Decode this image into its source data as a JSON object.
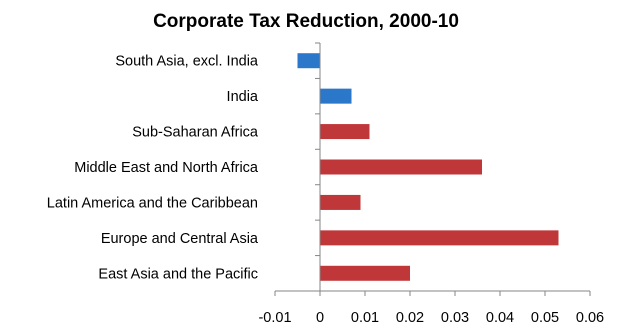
{
  "chart_data": {
    "type": "bar",
    "orientation": "horizontal",
    "title": "Corporate Tax Reduction, 2000-10",
    "xlabel": "",
    "ylabel": "",
    "categories": [
      "South Asia, excl. India",
      "India",
      "Sub-Saharan Africa",
      "Middle East and North Africa",
      "Latin America and the Caribbean",
      "Europe and Central Asia",
      "East Asia and the Pacific"
    ],
    "values": [
      -0.005,
      0.007,
      0.011,
      0.036,
      0.009,
      0.053,
      0.02
    ],
    "colors": [
      "#2b77c9",
      "#2b77c9",
      "#c0373a",
      "#c0373a",
      "#c0373a",
      "#c0373a",
      "#c0373a"
    ],
    "xlim": [
      -0.01,
      0.06
    ],
    "xticks": [
      "-0.01",
      "0",
      "0.01",
      "0.02",
      "0.03",
      "0.04",
      "0.05",
      "0.06"
    ],
    "grid": false,
    "legend": "none"
  }
}
